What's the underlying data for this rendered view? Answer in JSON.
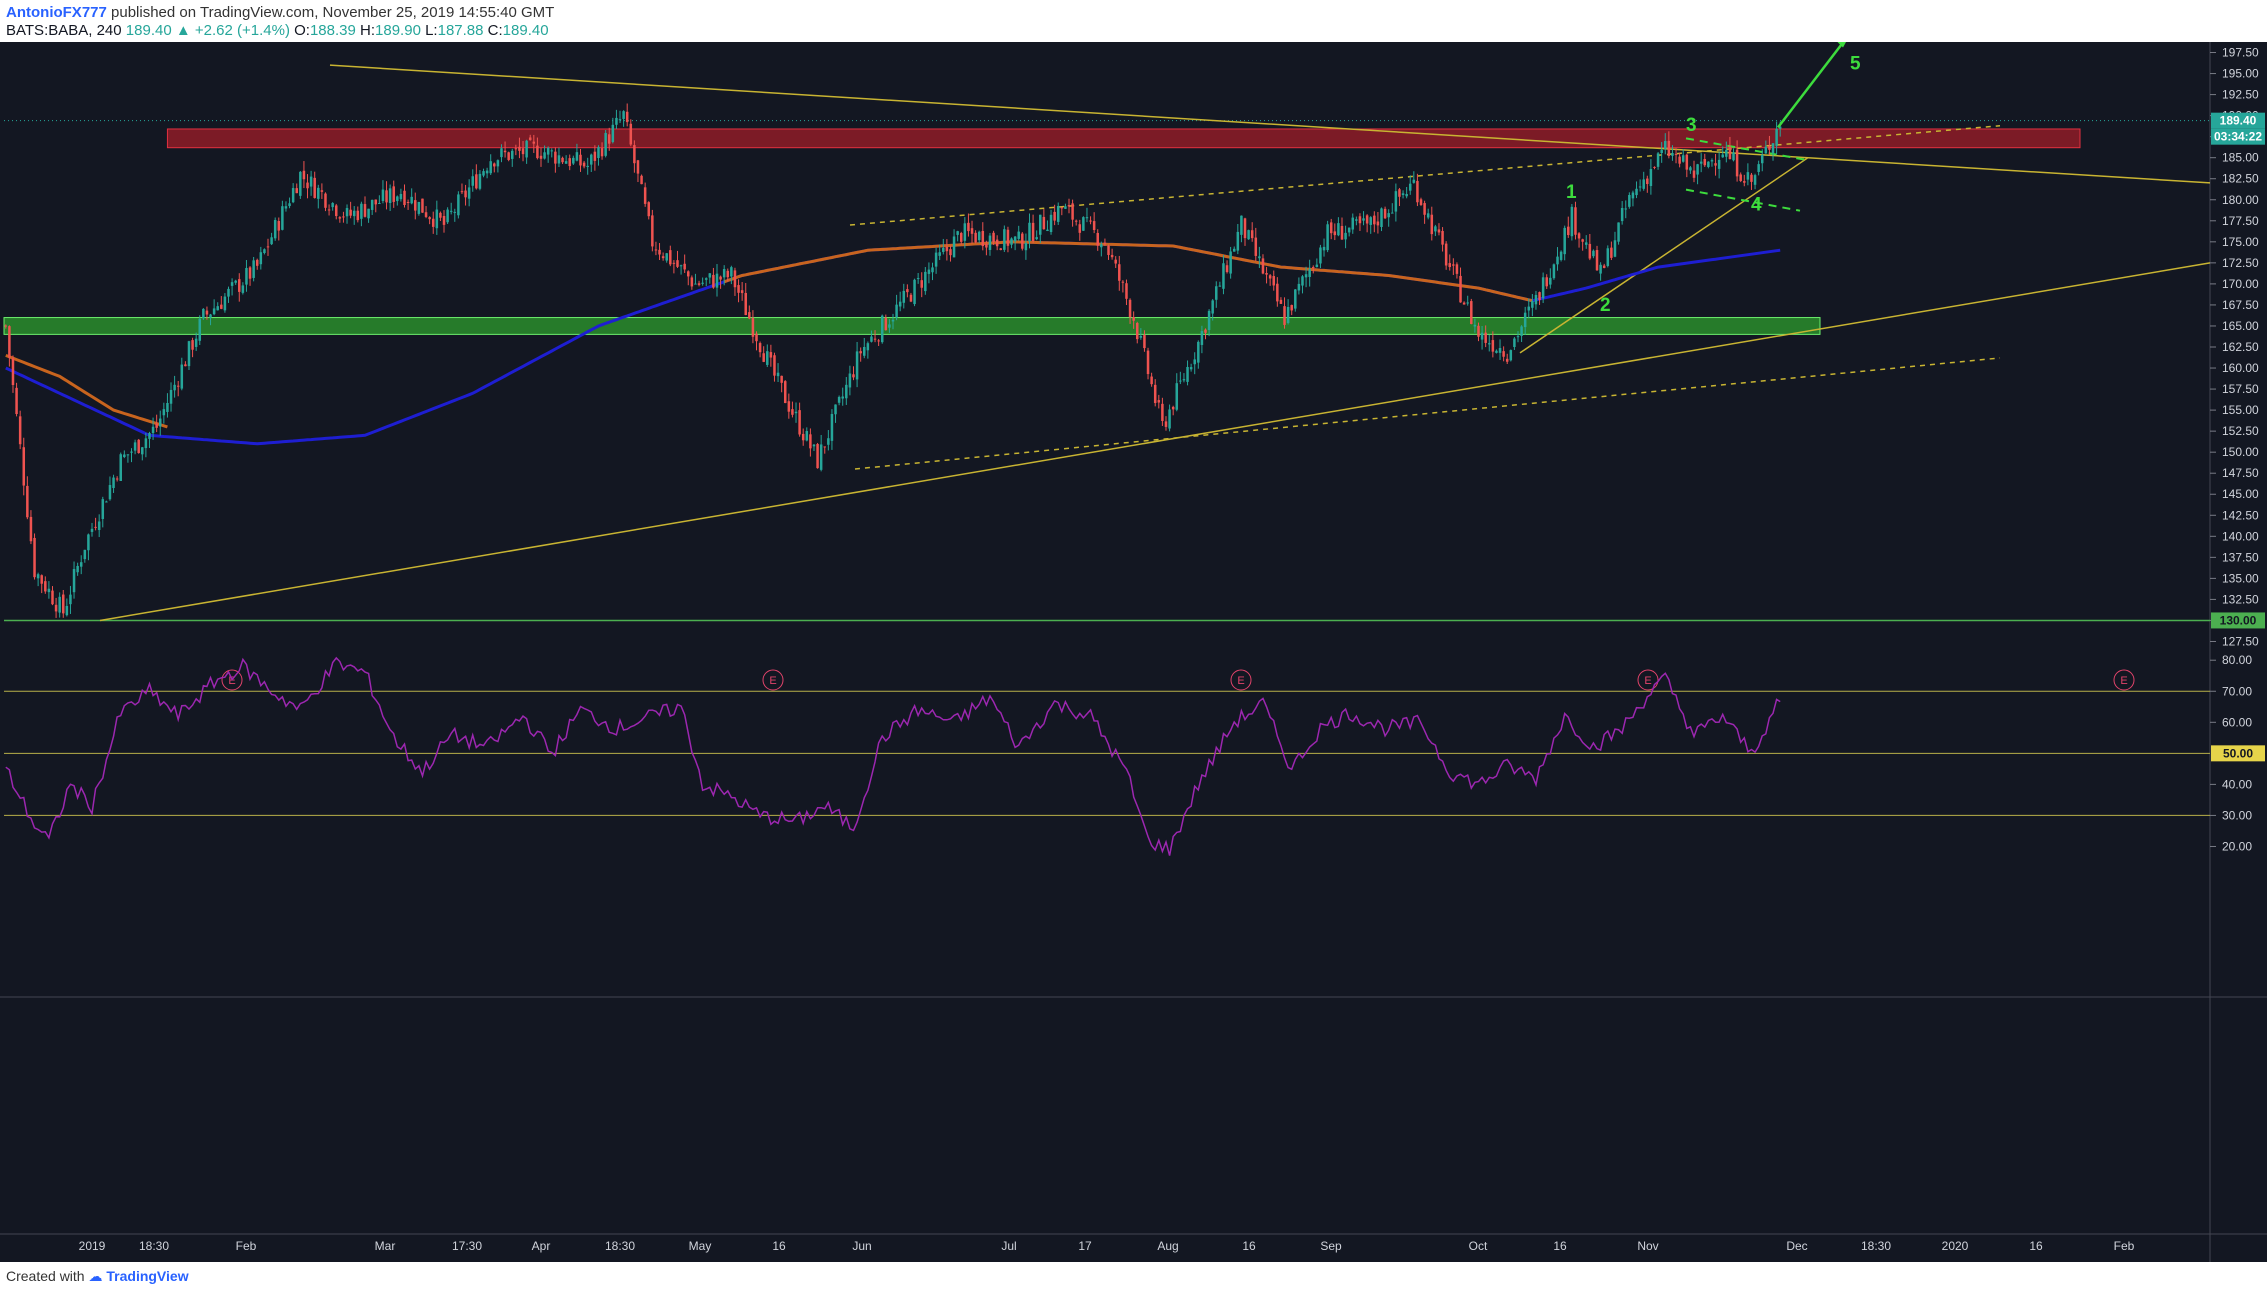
{
  "header": {
    "author": "AntonioFX777",
    "published": "published on TradingView.com, November 25, 2019 14:55:40 GMT",
    "symbol": "BATS:BABA, 240",
    "last": "189.40",
    "change": "+2.62 (+1.4%)",
    "o_label": "O:",
    "o": "188.39",
    "h_label": "H:",
    "h": "189.90",
    "l_label": "L:",
    "l": "187.88",
    "c_label": "C:",
    "c": "189.40"
  },
  "footer": {
    "created": "Created with",
    "brand": "TradingView"
  },
  "colors": {
    "background": "#131722",
    "up": "#26a69a",
    "down": "#ef5350",
    "ma_slow": "#1e1ed2",
    "ma_fast": "#c8641e",
    "rsi": "#9c27b0",
    "trend": "#c8b432",
    "support_zone": "#2e9e2e",
    "resistance_zone": "#a01e28",
    "wave": "#3ddc3d"
  },
  "chart_data": [
    {
      "type": "candlestick",
      "yaxis": {
        "range": [
          126.25,
          198.75
        ],
        "ticks": [
          "197.50",
          "195.00",
          "192.50",
          "190.00",
          "187.50",
          "185.00",
          "182.50",
          "180.00",
          "177.50",
          "175.00",
          "172.50",
          "170.00",
          "167.50",
          "165.00",
          "162.50",
          "160.00",
          "157.50",
          "155.00",
          "152.50",
          "150.00",
          "147.50",
          "145.00",
          "142.50",
          "140.00",
          "137.50",
          "135.00",
          "132.50",
          "130.00",
          "127.50"
        ]
      },
      "xaxis_ticks": [
        "2019",
        "18:30",
        "Feb",
        "Mar",
        "17:30",
        "Apr",
        "18:30",
        "May",
        "16",
        "Jun",
        "Jul",
        "17",
        "Aug",
        "16",
        "Sep",
        "Oct",
        "16",
        "Nov",
        "Dec",
        "18:30",
        "2020",
        "16",
        "Feb"
      ],
      "price_tag": "189.40",
      "countdown": "03:34:22",
      "level_tag": "130.00",
      "zones": [
        {
          "name": "resistance",
          "from": 186.9,
          "to": 187.7
        },
        {
          "name": "support",
          "from": 164.0,
          "to": 166.0
        }
      ],
      "waves": [
        "1",
        "2",
        "3",
        "4",
        "5"
      ],
      "earnings_label": "E",
      "anchors": [
        {
          "t": 0,
          "p": 165
        },
        {
          "t": 8,
          "p": 136
        },
        {
          "t": 16,
          "p": 131
        },
        {
          "t": 22,
          "p": 139
        },
        {
          "t": 32,
          "p": 149
        },
        {
          "t": 42,
          "p": 153
        },
        {
          "t": 55,
          "p": 166
        },
        {
          "t": 70,
          "p": 172
        },
        {
          "t": 82,
          "p": 183
        },
        {
          "t": 95,
          "p": 178
        },
        {
          "t": 110,
          "p": 181
        },
        {
          "t": 122,
          "p": 177
        },
        {
          "t": 135,
          "p": 185
        },
        {
          "t": 148,
          "p": 186
        },
        {
          "t": 162,
          "p": 184
        },
        {
          "t": 172,
          "p": 190
        },
        {
          "t": 180,
          "p": 175
        },
        {
          "t": 192,
          "p": 170
        },
        {
          "t": 202,
          "p": 171
        },
        {
          "t": 214,
          "p": 159
        },
        {
          "t": 226,
          "p": 149
        },
        {
          "t": 238,
          "p": 162
        },
        {
          "t": 252,
          "p": 169
        },
        {
          "t": 266,
          "p": 176
        },
        {
          "t": 282,
          "p": 175
        },
        {
          "t": 294,
          "p": 179
        },
        {
          "t": 306,
          "p": 175
        },
        {
          "t": 314,
          "p": 166
        },
        {
          "t": 322,
          "p": 153
        },
        {
          "t": 332,
          "p": 163
        },
        {
          "t": 344,
          "p": 177
        },
        {
          "t": 356,
          "p": 166
        },
        {
          "t": 368,
          "p": 176
        },
        {
          "t": 380,
          "p": 177
        },
        {
          "t": 392,
          "p": 182
        },
        {
          "t": 402,
          "p": 172
        },
        {
          "t": 410,
          "p": 164
        },
        {
          "t": 418,
          "p": 162
        },
        {
          "t": 426,
          "p": 168
        },
        {
          "t": 436,
          "p": 178
        },
        {
          "t": 444,
          "p": 171
        },
        {
          "t": 452,
          "p": 180
        },
        {
          "t": 462,
          "p": 186
        },
        {
          "t": 470,
          "p": 183
        },
        {
          "t": 478,
          "p": 186
        },
        {
          "t": 486,
          "p": 182
        },
        {
          "t": 494,
          "p": 189.4
        }
      ],
      "ma_slow": [
        {
          "t": 0,
          "p": 160
        },
        {
          "t": 40,
          "p": 152
        },
        {
          "t": 70,
          "p": 151
        },
        {
          "t": 100,
          "p": 152
        },
        {
          "t": 130,
          "p": 157
        },
        {
          "t": 165,
          "p": 165
        },
        {
          "t": 205,
          "p": 171
        },
        {
          "t": 240,
          "p": 174
        },
        {
          "t": 280,
          "p": 175
        },
        {
          "t": 325,
          "p": 174.5
        },
        {
          "t": 355,
          "p": 172
        },
        {
          "t": 385,
          "p": 171
        },
        {
          "t": 410,
          "p": 169.5
        },
        {
          "t": 425,
          "p": 168
        },
        {
          "t": 440,
          "p": 169.5
        },
        {
          "t": 460,
          "p": 172
        },
        {
          "t": 494,
          "p": 174
        }
      ],
      "ma_fast": [
        {
          "t": 0,
          "p": 161.5
        },
        {
          "t": 15,
          "p": 159
        },
        {
          "t": 30,
          "p": 155
        },
        {
          "t": 45,
          "p": 153
        }
      ]
    },
    {
      "type": "line",
      "name": "RSI",
      "yaxis": {
        "range": [
          15,
          82
        ],
        "ticks": [
          "80.00",
          "70.00",
          "60.00",
          "40.00",
          "30.00",
          "20.00"
        ]
      },
      "levels": [
        70,
        50,
        30
      ],
      "level_tag": "50.00",
      "anchors": [
        {
          "t": 0,
          "p": 45
        },
        {
          "t": 8,
          "p": 27
        },
        {
          "t": 12,
          "p": 22
        },
        {
          "t": 18,
          "p": 40
        },
        {
          "t": 24,
          "p": 33
        },
        {
          "t": 32,
          "p": 63
        },
        {
          "t": 40,
          "p": 70
        },
        {
          "t": 48,
          "p": 62
        },
        {
          "t": 58,
          "p": 73
        },
        {
          "t": 66,
          "p": 78
        },
        {
          "t": 74,
          "p": 70
        },
        {
          "t": 82,
          "p": 64
        },
        {
          "t": 92,
          "p": 79
        },
        {
          "t": 100,
          "p": 76
        },
        {
          "t": 108,
          "p": 55
        },
        {
          "t": 116,
          "p": 44
        },
        {
          "t": 124,
          "p": 56
        },
        {
          "t": 134,
          "p": 52
        },
        {
          "t": 144,
          "p": 62
        },
        {
          "t": 152,
          "p": 50
        },
        {
          "t": 160,
          "p": 64
        },
        {
          "t": 170,
          "p": 58
        },
        {
          "t": 180,
          "p": 62
        },
        {
          "t": 188,
          "p": 65
        },
        {
          "t": 194,
          "p": 40
        },
        {
          "t": 202,
          "p": 36
        },
        {
          "t": 210,
          "p": 30
        },
        {
          "t": 220,
          "p": 28
        },
        {
          "t": 228,
          "p": 33
        },
        {
          "t": 236,
          "p": 26
        },
        {
          "t": 244,
          "p": 55
        },
        {
          "t": 254,
          "p": 64
        },
        {
          "t": 264,
          "p": 60
        },
        {
          "t": 274,
          "p": 68
        },
        {
          "t": 282,
          "p": 52
        },
        {
          "t": 292,
          "p": 66
        },
        {
          "t": 302,
          "p": 62
        },
        {
          "t": 312,
          "p": 44
        },
        {
          "t": 318,
          "p": 22
        },
        {
          "t": 324,
          "p": 19
        },
        {
          "t": 332,
          "p": 40
        },
        {
          "t": 342,
          "p": 60
        },
        {
          "t": 350,
          "p": 66
        },
        {
          "t": 358,
          "p": 45
        },
        {
          "t": 366,
          "p": 58
        },
        {
          "t": 374,
          "p": 63
        },
        {
          "t": 384,
          "p": 58
        },
        {
          "t": 394,
          "p": 60
        },
        {
          "t": 402,
          "p": 44
        },
        {
          "t": 410,
          "p": 40
        },
        {
          "t": 418,
          "p": 46
        },
        {
          "t": 426,
          "p": 42
        },
        {
          "t": 434,
          "p": 62
        },
        {
          "t": 442,
          "p": 52
        },
        {
          "t": 450,
          "p": 58
        },
        {
          "t": 458,
          "p": 70
        },
        {
          "t": 462,
          "p": 74
        },
        {
          "t": 470,
          "p": 56
        },
        {
          "t": 478,
          "p": 62
        },
        {
          "t": 486,
          "p": 50
        },
        {
          "t": 494,
          "p": 67
        }
      ]
    }
  ]
}
